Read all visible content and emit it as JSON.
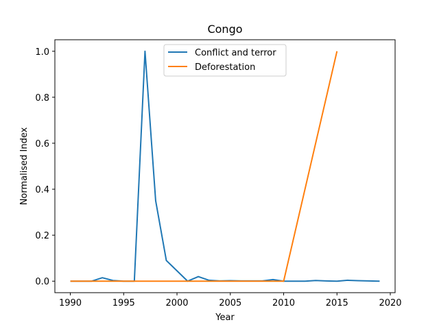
{
  "chart_data": {
    "type": "line",
    "title": "Congo",
    "xlabel": "Year",
    "ylabel": "Normalised Index",
    "xlim": [
      1988.55,
      2020.45
    ],
    "ylim": [
      -0.05,
      1.05
    ],
    "x_ticks": [
      1990,
      1995,
      2000,
      2005,
      2010,
      2015,
      2020
    ],
    "y_ticks": [
      0.0,
      0.2,
      0.4,
      0.6,
      0.8,
      1.0
    ],
    "y_tick_labels": [
      "0.0",
      "0.2",
      "0.4",
      "0.6",
      "0.8",
      "1.0"
    ],
    "legend_position": "upper center",
    "grid": false,
    "series": [
      {
        "name": "Conflict and terror",
        "color": "#1f77b4",
        "x": [
          1990,
          1991,
          1992,
          1993,
          1994,
          1995,
          1996,
          1997,
          1998,
          1999,
          2000,
          2001,
          2002,
          2003,
          2004,
          2005,
          2006,
          2007,
          2008,
          2009,
          2010,
          2011,
          2012,
          2013,
          2014,
          2015,
          2016,
          2017,
          2018,
          2019
        ],
        "y": [
          0.0,
          0.0,
          0.0,
          0.015,
          0.003,
          0.0,
          0.0,
          1.0,
          0.35,
          0.09,
          0.045,
          0.0,
          0.02,
          0.004,
          0.001,
          0.002,
          0.001,
          0.001,
          0.001,
          0.007,
          0.0,
          0.0,
          0.0,
          0.003,
          0.001,
          0.0,
          0.004,
          0.002,
          0.001,
          0.0
        ]
      },
      {
        "name": "Deforestation",
        "color": "#ff7f0e",
        "x": [
          1990,
          1995,
          2000,
          2005,
          2010,
          2015
        ],
        "y": [
          0.0,
          0.0,
          0.0,
          0.0,
          0.0,
          1.0
        ]
      }
    ]
  }
}
